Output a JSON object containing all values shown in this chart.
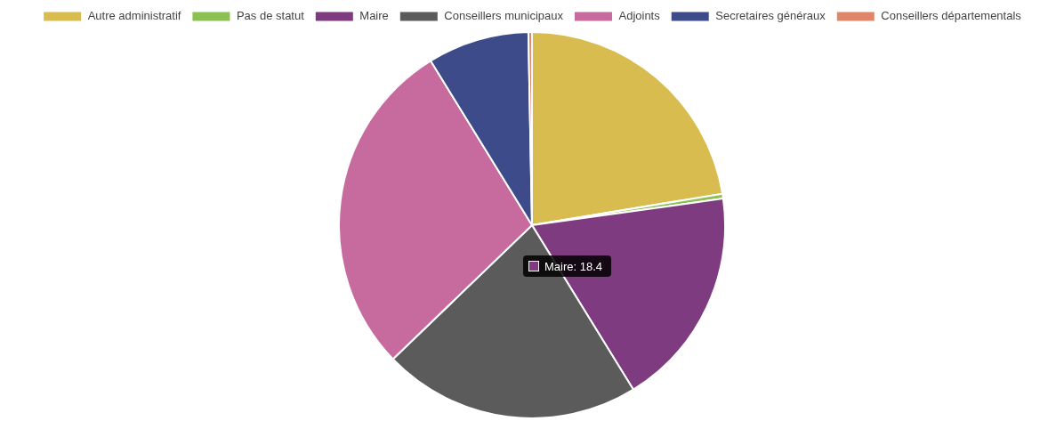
{
  "chart_data": {
    "type": "pie",
    "categories": [
      "Autre administratif",
      "Pas de statut",
      "Maire",
      "Conseillers municipaux",
      "Adjoints",
      "Secretaires généraux",
      "Conseillers départementals"
    ],
    "values": [
      22.4,
      0.4,
      18.4,
      21.6,
      28.4,
      8.5,
      0.3
    ],
    "colors": [
      "#d9bc4f",
      "#8bc152",
      "#7f3b80",
      "#5b5b5b",
      "#c76b9e",
      "#3d4b8a",
      "#e0876b"
    ],
    "legend": "top",
    "annotations": [
      "Maire: 18.4"
    ]
  }
}
